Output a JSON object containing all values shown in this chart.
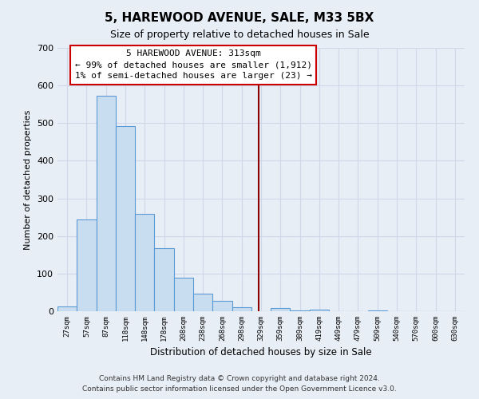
{
  "title": "5, HAREWOOD AVENUE, SALE, M33 5BX",
  "subtitle": "Size of property relative to detached houses in Sale",
  "xlabel": "Distribution of detached houses by size in Sale",
  "ylabel": "Number of detached properties",
  "bar_color": "#c8ddf0",
  "bar_edge_color": "#5b9bd5",
  "background_color": "#e8eef6",
  "grid_color": "#d0d8e8",
  "bin_labels": [
    "27sqm",
    "57sqm",
    "87sqm",
    "118sqm",
    "148sqm",
    "178sqm",
    "208sqm",
    "238sqm",
    "268sqm",
    "298sqm",
    "329sqm",
    "359sqm",
    "389sqm",
    "419sqm",
    "449sqm",
    "479sqm",
    "509sqm",
    "540sqm",
    "570sqm",
    "600sqm",
    "630sqm"
  ],
  "bar_values": [
    12,
    245,
    573,
    493,
    258,
    168,
    90,
    47,
    27,
    10,
    0,
    8,
    3,
    5,
    0,
    0,
    3,
    0,
    0,
    0,
    0
  ],
  "ylim": [
    0,
    700
  ],
  "yticks": [
    0,
    100,
    200,
    300,
    400,
    500,
    600,
    700
  ],
  "vline_x": 9.87,
  "vline_color": "#8b0000",
  "annotation_title": "5 HAREWOOD AVENUE: 313sqm",
  "annotation_line1": "← 99% of detached houses are smaller (1,912)",
  "annotation_line2": "1% of semi-detached houses are larger (23) →",
  "annotation_box_color": "#ffffff",
  "annotation_box_edge": "#cc0000",
  "footer_line1": "Contains HM Land Registry data © Crown copyright and database right 2024.",
  "footer_line2": "Contains public sector information licensed under the Open Government Licence v3.0."
}
